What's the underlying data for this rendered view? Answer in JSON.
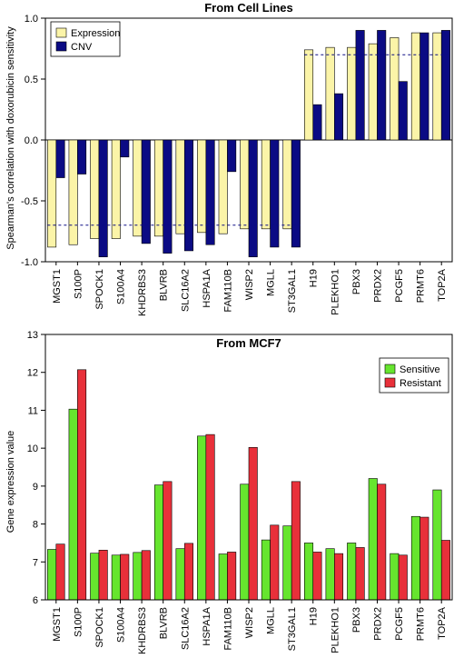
{
  "chart_data": [
    {
      "type": "bar",
      "title": "From Cell Lines",
      "ylabel": "Spearman's correlation with doxorubicin sensitivity",
      "xlabel": "",
      "ylim": [
        -1.0,
        1.0
      ],
      "yticks": [
        -1.0,
        -0.5,
        0.0,
        0.5,
        1.0
      ],
      "ytick_labels": [
        "-1.0",
        "-0.5",
        "0.0",
        "0.5",
        "1.0"
      ],
      "legend_position": "top-left",
      "reference_lines": [
        -0.7,
        0.7
      ],
      "categories": [
        "MGST1",
        "S100P",
        "SPOCK1",
        "S100A4",
        "KHDRBS3",
        "BLVRB",
        "SLC16A2",
        "HSPA1A",
        "FAM110B",
        "WISP2",
        "MGLL",
        "ST3GAL1",
        "H19",
        "PLEKHO1",
        "PBX3",
        "PRDX2",
        "PCGF5",
        "PRMT6",
        "TOP2A"
      ],
      "series": [
        {
          "name": "Expression",
          "color": "#fbf4a8",
          "values": [
            -0.88,
            -0.86,
            -0.81,
            -0.81,
            -0.79,
            -0.79,
            -0.77,
            -0.76,
            -0.77,
            -0.73,
            -0.73,
            -0.73,
            0.74,
            0.76,
            0.76,
            0.79,
            0.84,
            0.88,
            0.88
          ]
        },
        {
          "name": "CNV",
          "color": "#0b0b84",
          "values": [
            -0.31,
            -0.28,
            -0.96,
            -0.14,
            -0.85,
            -0.93,
            -0.91,
            -0.86,
            -0.26,
            -0.96,
            -0.88,
            -0.88,
            0.29,
            0.38,
            0.9,
            0.9,
            0.48,
            0.88,
            0.9
          ]
        }
      ]
    },
    {
      "type": "bar",
      "title": "From MCF7",
      "ylabel": "Gene expression value",
      "xlabel": "",
      "ylim": [
        6,
        13
      ],
      "yticks": [
        6,
        7,
        8,
        9,
        10,
        11,
        12,
        13
      ],
      "ytick_labels": [
        "6",
        "7",
        "8",
        "9",
        "10",
        "11",
        "12",
        "13"
      ],
      "legend_position": "top-right",
      "categories": [
        "MGST1",
        "S100P",
        "SPOCK1",
        "S100A4",
        "KHDRBS3",
        "BLVRB",
        "SLC16A2",
        "HSPA1A",
        "FAM110B",
        "WISP2",
        "MGLL",
        "ST3GAL1",
        "H19",
        "PLEKHO1",
        "PBX3",
        "PRDX2",
        "PCGF5",
        "PRMT6",
        "TOP2A"
      ],
      "series": [
        {
          "name": "Sensitive",
          "color": "#66e52e",
          "values": [
            7.33,
            11.03,
            7.23,
            7.18,
            7.25,
            9.03,
            7.35,
            10.32,
            7.21,
            9.05,
            7.58,
            7.95,
            7.5,
            7.35,
            7.5,
            9.2,
            7.22,
            8.2,
            8.9
          ]
        },
        {
          "name": "Resistant",
          "color": "#e8303a",
          "values": [
            7.47,
            12.07,
            7.31,
            7.2,
            7.3,
            9.12,
            7.49,
            10.36,
            7.26,
            10.02,
            7.97,
            9.12,
            7.26,
            7.22,
            7.38,
            9.05,
            7.18,
            8.18,
            7.57
          ]
        }
      ]
    }
  ]
}
